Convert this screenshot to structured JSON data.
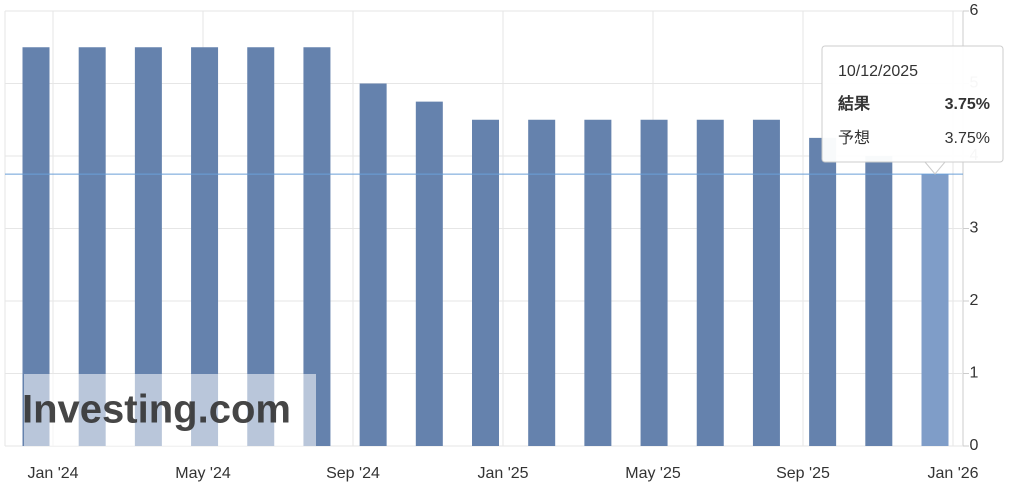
{
  "chart_data": {
    "type": "bar",
    "categories": [
      null,
      null,
      null,
      null,
      null,
      null,
      null,
      null,
      null,
      null,
      null,
      null,
      null,
      null,
      null,
      null,
      null
    ],
    "values": [
      5.5,
      5.5,
      5.5,
      5.5,
      5.5,
      5.5,
      5.0,
      4.75,
      4.5,
      4.5,
      4.5,
      4.5,
      4.5,
      4.5,
      4.25,
      4.0,
      3.75
    ],
    "color": "#6582ad",
    "highlight_color": "#7f9dc8",
    "x_labels": [
      "Jan '24",
      "May '24",
      "Sep '24",
      "Jan '25",
      "May '25",
      "Sep '25",
      "Jan '26"
    ],
    "ylim": [
      0,
      6
    ],
    "yticks": [
      0,
      1,
      2,
      3,
      4,
      5,
      6
    ],
    "grid": true,
    "reference_line": 3.75,
    "watermark": "Investing.com",
    "tooltip": {
      "date": "10/12/2025",
      "result_label": "結果",
      "result": "3.75%",
      "forecast_label": "予想",
      "forecast": "3.75%"
    }
  }
}
